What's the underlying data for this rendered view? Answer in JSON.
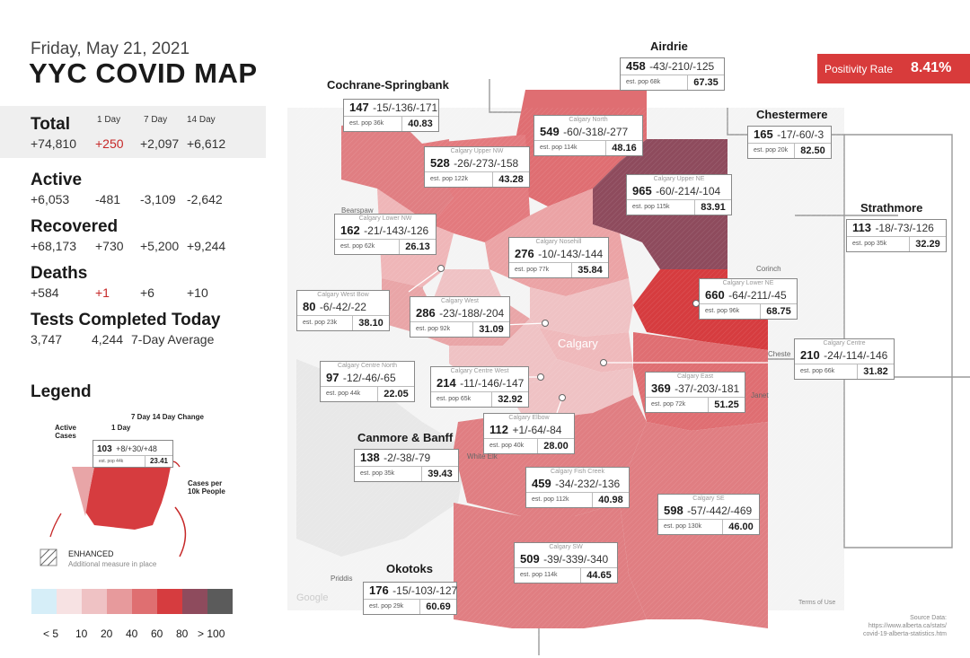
{
  "header": {
    "date": "Friday, May 21, 2021",
    "title": "YYC COVID MAP"
  },
  "columns": {
    "day1": "1 Day",
    "day7": "7 Day",
    "day14": "14 Day"
  },
  "stats": {
    "total": {
      "label": "Total",
      "value": "+74,810",
      "d1": "+250",
      "d7": "+2,097",
      "d14": "+6,612"
    },
    "active": {
      "label": "Active",
      "value": "+6,053",
      "d1": "-481",
      "d7": "-3,109",
      "d14": "-2,642"
    },
    "recovered": {
      "label": "Recovered",
      "value": "+68,173",
      "d1": "+730",
      "d7": "+5,200",
      "d14": "+9,244"
    },
    "deaths": {
      "label": "Deaths",
      "value": "+584",
      "d1": "+1",
      "d7": "+6",
      "d14": "+10"
    },
    "tests": {
      "label": "Tests Completed Today",
      "value": "3,747",
      "avg": "4,244",
      "avg_label": "7-Day Average"
    }
  },
  "legend": {
    "title": "Legend",
    "active_cases": "Active Cases",
    "one_day": "1 Day",
    "seven_fourteen": "7 Day  14 Day Change",
    "example_value": "103",
    "example_change": "+8/+30/+48",
    "example_pop": "est. pop 44k",
    "example_rate": "23.41",
    "cases_per": "Cases per 10k People",
    "enhanced": "ENHANCED",
    "enhanced_sub": "Additional measure in place",
    "scale_labels": [
      "< 5",
      "10",
      "20",
      "40",
      "60",
      "80",
      "> 100"
    ],
    "scale_colors": [
      "#d6eef8",
      "#f7e2e3",
      "#efc2c4",
      "#e79a9c",
      "#df6f71",
      "#d63c3f",
      "#8e4b5d",
      "#5b5b5b"
    ]
  },
  "positivity": {
    "label": "Positivity Rate",
    "value": "8.41%"
  },
  "source": {
    "line1": "Source Data:",
    "line2": "https://www.alberta.ca/stats/",
    "line3": "covid-19-alberta-statistics.htm"
  },
  "regions": {
    "airdrie": {
      "title": "Airdrie",
      "value": "458",
      "change": "-43/-210/-125",
      "pop": "est. pop 68k",
      "rate": "67.35"
    },
    "cochrane": {
      "title": "Cochrane-Springbank",
      "value": "147",
      "change": "-15/-136/-171",
      "pop": "est. pop 36k",
      "rate": "40.83"
    },
    "chestermere": {
      "title": "Chestermere",
      "value": "165",
      "change": "-17/-60/-3",
      "pop": "est. pop 20k",
      "rate": "82.50"
    },
    "strathmore": {
      "title": "Strathmore",
      "value": "113",
      "change": "-18/-73/-126",
      "pop": "est. pop 35k",
      "rate": "32.29"
    },
    "canmore": {
      "title": "Canmore & Banff",
      "value": "138",
      "change": "-2/-38/-79",
      "pop": "est. pop 35k",
      "rate": "39.43"
    },
    "okotoks": {
      "title": "Okotoks",
      "value": "176",
      "change": "-15/-103/-127",
      "pop": "est. pop 29k",
      "rate": "60.69"
    },
    "north": {
      "name": "Calgary North",
      "value": "549",
      "change": "-60/-318/-277",
      "pop": "est. pop 114k",
      "rate": "48.16"
    },
    "upper_nw": {
      "name": "Calgary Upper NW",
      "value": "528",
      "change": "-26/-273/-158",
      "pop": "est. pop 122k",
      "rate": "43.28"
    },
    "upper_ne": {
      "name": "Calgary Upper NE",
      "value": "965",
      "change": "-60/-214/-104",
      "pop": "est. pop 115k",
      "rate": "83.91"
    },
    "lower_nw": {
      "name": "Calgary Lower NW",
      "value": "162",
      "change": "-21/-143/-126",
      "pop": "est. pop 62k",
      "rate": "26.13"
    },
    "nosehill": {
      "name": "Calgary Nosehill",
      "value": "276",
      "change": "-10/-143/-144",
      "pop": "est. pop 77k",
      "rate": "35.84"
    },
    "west_bow": {
      "name": "Calgary West Bow",
      "value": "80",
      "change": "-6/-42/-22",
      "pop": "est. pop 23k",
      "rate": "38.10"
    },
    "west": {
      "name": "Calgary West",
      "value": "286",
      "change": "-23/-188/-204",
      "pop": "est. pop 92k",
      "rate": "31.09"
    },
    "lower_ne": {
      "name": "Calgary Lower NE",
      "value": "660",
      "change": "-64/-211/-45",
      "pop": "est. pop 96k",
      "rate": "68.75"
    },
    "centre": {
      "name": "Calgary Centre",
      "value": "210",
      "change": "-24/-114/-146",
      "pop": "est. pop 66k",
      "rate": "31.82"
    },
    "centre_north": {
      "name": "Calgary Centre North",
      "value": "97",
      "change": "-12/-46/-65",
      "pop": "est. pop 44k",
      "rate": "22.05"
    },
    "centre_west": {
      "name": "Calgary Centre West",
      "value": "214",
      "change": "-11/-146/-147",
      "pop": "est. pop 65k",
      "rate": "32.92"
    },
    "east": {
      "name": "Calgary East",
      "value": "369",
      "change": "-37/-203/-181",
      "pop": "est. pop 72k",
      "rate": "51.25"
    },
    "elbow": {
      "name": "Calgary Elbow",
      "value": "112",
      "change": "+1/-64/-84",
      "pop": "est. pop 40k",
      "rate": "28.00"
    },
    "fish_creek": {
      "name": "Calgary Fish Creek",
      "value": "459",
      "change": "-34/-232/-136",
      "pop": "est. pop 112k",
      "rate": "40.98"
    },
    "se": {
      "name": "Calgary SE",
      "value": "598",
      "change": "-57/-442/-469",
      "pop": "est. pop 130k",
      "rate": "46.00"
    },
    "sw": {
      "name": "Calgary SW",
      "value": "509",
      "change": "-39/-339/-340",
      "pop": "est. pop 114k",
      "rate": "44.65"
    }
  },
  "map_labels": {
    "calgary": "Calgary",
    "coriich": "Corinch",
    "cheste": "Cheste",
    "janet": "Janet",
    "priddis": "Priddis",
    "white_elk": "White Elk",
    "bearspaw": "Bearspaw",
    "google": "Google",
    "terms": "Terms of Use"
  }
}
